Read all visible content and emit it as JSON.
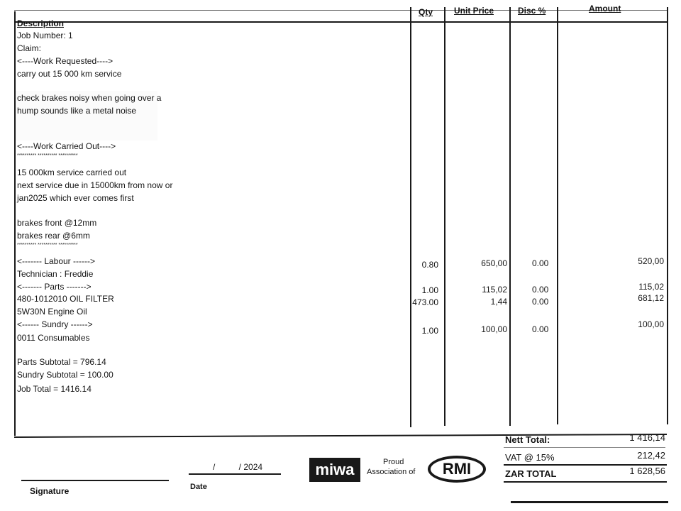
{
  "table": {
    "headers": {
      "description": "Description",
      "qty": "Qty",
      "unit_price": "Unit Price",
      "disc": "Disc %",
      "amount": "Amount"
    },
    "description_lines": [
      "Job Number: 1",
      "Claim:",
      "<----Work Requested---->",
      "carry out 15 000 km service",
      "check brakes noisy when going over a",
      "hump sounds like a metal noise",
      "<----Work Carried Out---->",
      "********** ********** **********",
      "15 000km service carried out",
      "next service due in 15000km from now or",
      "jan2025 which ever comes first",
      "brakes front @12mm",
      "brakes rear @6mm",
      "********** ********** **********",
      "<------- Labour ------>",
      "Technician : Freddie",
      "<------- Parts ------->",
      "480-1012010  OIL FILTER",
      "5W30N  Engine Oil",
      "<------ Sundry ------>",
      "0011 Consumables",
      "Parts Subtotal = 796.14",
      "Sundry Subtotal = 100.00",
      "Job Total = 1416.14"
    ],
    "line_items": [
      {
        "qty": "0.80",
        "unit_price": "650,00",
        "disc": "0.00",
        "amount": "520,00"
      },
      {
        "qty": "1.00",
        "unit_price": "115,02",
        "disc": "0.00",
        "amount": "115,02"
      },
      {
        "qty": "473.00",
        "unit_price": "1,44",
        "disc": "0.00",
        "amount": "681,12"
      },
      {
        "qty": "1.00",
        "unit_price": "100,00",
        "disc": "0.00",
        "amount": "100,00"
      }
    ]
  },
  "totals": {
    "nett_label": "Nett Total:",
    "nett_value": "1 416,14",
    "vat_label": "VAT @ 15%",
    "vat_value": "212,42",
    "zar_label": "ZAR TOTAL",
    "zar_value": "1 628,56"
  },
  "footer": {
    "signature_label": "Signature",
    "date_value": "/          / 2024",
    "date_label": "Date",
    "miwa_logo": "miwa",
    "proud_text_1": "Proud",
    "proud_text_2": "Association of",
    "rmi_logo": "RMI"
  }
}
